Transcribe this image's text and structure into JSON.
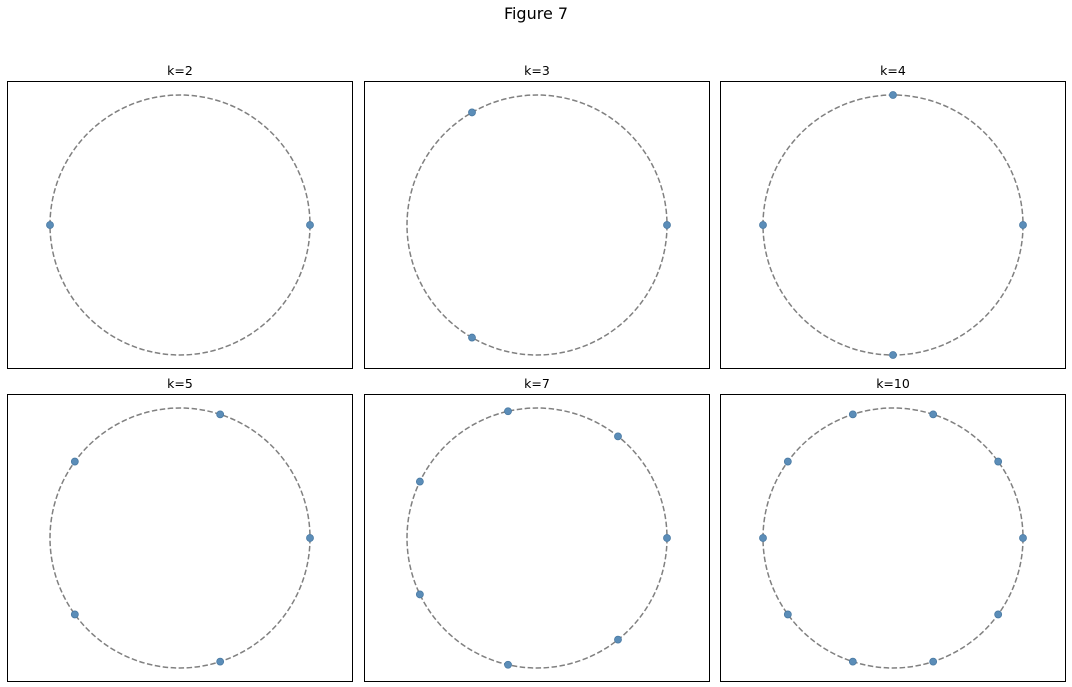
{
  "figure": {
    "title": "Figure 7"
  },
  "chart_data": [
    {
      "type": "scatter",
      "title": "k=2",
      "k": 2,
      "circle": {
        "radius": 1,
        "style": "dashed"
      },
      "points": [
        [
          1,
          0
        ],
        [
          -1,
          0
        ]
      ]
    },
    {
      "type": "scatter",
      "title": "k=3",
      "k": 3,
      "circle": {
        "radius": 1,
        "style": "dashed"
      },
      "points": [
        [
          1,
          0
        ],
        [
          -0.5,
          0.866
        ],
        [
          -0.5,
          -0.866
        ]
      ]
    },
    {
      "type": "scatter",
      "title": "k=4",
      "k": 4,
      "circle": {
        "radius": 1,
        "style": "dashed"
      },
      "points": [
        [
          1,
          0
        ],
        [
          0,
          1
        ],
        [
          -1,
          0
        ],
        [
          0,
          -1
        ]
      ]
    },
    {
      "type": "scatter",
      "title": "k=5",
      "k": 5,
      "circle": {
        "radius": 1,
        "style": "dashed"
      },
      "points": [
        [
          1,
          0
        ],
        [
          0.309,
          0.951
        ],
        [
          -0.809,
          0.588
        ],
        [
          -0.809,
          -0.588
        ],
        [
          0.309,
          -0.951
        ]
      ]
    },
    {
      "type": "scatter",
      "title": "k=7",
      "k": 7,
      "circle": {
        "radius": 1,
        "style": "dashed"
      },
      "points": [
        [
          1,
          0
        ],
        [
          0.623,
          0.782
        ],
        [
          -0.223,
          0.975
        ],
        [
          -0.901,
          0.434
        ],
        [
          -0.901,
          -0.434
        ],
        [
          -0.223,
          -0.975
        ],
        [
          0.623,
          -0.782
        ]
      ]
    },
    {
      "type": "scatter",
      "title": "k=10",
      "k": 10,
      "circle": {
        "radius": 1,
        "style": "dashed"
      },
      "points": [
        [
          1,
          0
        ],
        [
          0.809,
          0.588
        ],
        [
          0.309,
          0.951
        ],
        [
          -0.309,
          0.951
        ],
        [
          -0.809,
          0.588
        ],
        [
          -1,
          0
        ],
        [
          -0.809,
          -0.588
        ],
        [
          -0.309,
          -0.951
        ],
        [
          0.309,
          -0.951
        ],
        [
          0.809,
          -0.588
        ]
      ]
    }
  ],
  "colors": {
    "point": "#5b8db8",
    "point_edge": "#4a7aa3",
    "circle": "#808080",
    "frame": "#000000"
  }
}
